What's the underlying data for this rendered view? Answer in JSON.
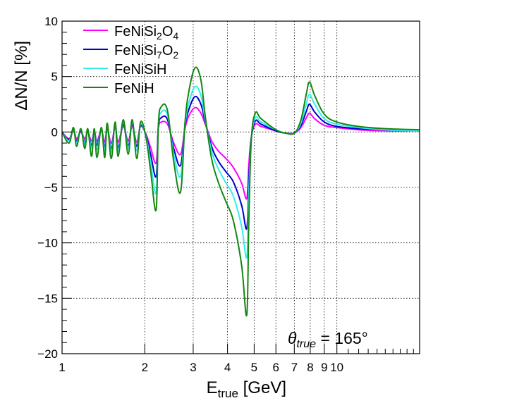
{
  "chart_data": {
    "type": "line",
    "title": "",
    "xlabel": "E",
    "xlabel_sub": "true",
    "xlabel_unit": " [GeV]",
    "ylabel": "ΔN/N [%]",
    "annotation": {
      "symbol": "θ",
      "sub": "true",
      "text": " = 165°"
    },
    "x_scale": "log",
    "xlim": [
      1,
      20
    ],
    "ylim": [
      -20,
      10
    ],
    "grid": true,
    "legend_position": "top-left",
    "x_tick_labels": [
      {
        "value": 1,
        "label": "1"
      },
      {
        "value": 2,
        "label": "2"
      },
      {
        "value": 3,
        "label": "3"
      },
      {
        "value": 4,
        "label": "4"
      },
      {
        "value": 5,
        "label": "5"
      },
      {
        "value": 6,
        "label": "6"
      },
      {
        "value": 7,
        "label": "7"
      },
      {
        "value": 8,
        "label": "8"
      },
      {
        "value": 9,
        "label": "9"
      },
      {
        "value": 10,
        "label": "10"
      }
    ],
    "y_ticks": [
      -20,
      -15,
      -10,
      -5,
      0,
      5,
      10
    ],
    "series": [
      {
        "name": "FeNiSi2O4",
        "label_parts": [
          [
            "FeNiSi",
            ""
          ],
          [
            "2",
            "sub"
          ],
          [
            "O",
            ""
          ],
          [
            "4",
            "sub"
          ]
        ],
        "color": "#ff00ff",
        "x": [
          1,
          1.06,
          1.1,
          1.13,
          1.17,
          1.21,
          1.24,
          1.28,
          1.31,
          1.34,
          1.39,
          1.43,
          1.46,
          1.51,
          1.56,
          1.6,
          1.67,
          1.74,
          1.8,
          1.87,
          1.93,
          2.02,
          2.1,
          2.2,
          2.24,
          2.3,
          2.42,
          2.55,
          2.7,
          2.8,
          2.9,
          3.05,
          3.2,
          3.32,
          3.5,
          3.7,
          3.95,
          4.2,
          4.5,
          4.7,
          4.78,
          4.88,
          5.05,
          5.3,
          6.0,
          6.5,
          7.0,
          7.4,
          7.75,
          7.95,
          8.3,
          9,
          10,
          12,
          15,
          20
        ],
        "y": [
          0,
          -0.6,
          0.1,
          -0.6,
          0.0,
          -0.6,
          0.0,
          -0.8,
          0.05,
          -0.8,
          0.1,
          -0.9,
          0.3,
          -1.0,
          0.4,
          -0.9,
          0.5,
          -0.8,
          0.5,
          -0.9,
          0.5,
          -0.2,
          -1.4,
          -2.8,
          0.3,
          0.9,
          0.7,
          -1.0,
          -2.0,
          0.3,
          1.5,
          2.2,
          1.7,
          0.7,
          -0.8,
          -1.7,
          -2.4,
          -3.2,
          -4.6,
          -6.0,
          -3.0,
          -0.5,
          0.7,
          0.5,
          0.1,
          -0.1,
          -0.1,
          0.4,
          1.3,
          1.7,
          1.2,
          0.6,
          0.4,
          0.2,
          0.1,
          0.1
        ]
      },
      {
        "name": "FeNiSi7O2",
        "label_parts": [
          [
            "FeNiSi",
            ""
          ],
          [
            "7",
            "sub"
          ],
          [
            "O",
            ""
          ],
          [
            "2",
            "sub"
          ]
        ],
        "color": "#0000cc",
        "x": [
          1,
          1.06,
          1.1,
          1.13,
          1.17,
          1.21,
          1.24,
          1.28,
          1.31,
          1.34,
          1.39,
          1.43,
          1.46,
          1.51,
          1.56,
          1.6,
          1.67,
          1.74,
          1.8,
          1.87,
          1.93,
          2.02,
          2.1,
          2.2,
          2.24,
          2.3,
          2.42,
          2.55,
          2.7,
          2.8,
          2.9,
          3.05,
          3.2,
          3.32,
          3.5,
          3.7,
          3.95,
          4.2,
          4.5,
          4.7,
          4.78,
          4.88,
          5.05,
          5.3,
          6.0,
          6.5,
          7.0,
          7.4,
          7.75,
          7.95,
          8.3,
          9,
          10,
          12,
          15,
          20
        ],
        "y": [
          0,
          -0.7,
          0.2,
          -0.8,
          0.1,
          -0.9,
          0.1,
          -1.2,
          0.1,
          -1.2,
          0.2,
          -1.4,
          0.4,
          -1.5,
          0.6,
          -1.4,
          0.7,
          -1.2,
          0.7,
          -1.3,
          0.6,
          -0.3,
          -2.0,
          -4.0,
          0.4,
          1.3,
          1.1,
          -1.5,
          -3.0,
          0.5,
          2.1,
          3.2,
          2.5,
          0.9,
          -1.3,
          -2.6,
          -3.6,
          -4.5,
          -6.6,
          -8.7,
          -4.4,
          -0.6,
          1.0,
          0.7,
          0.1,
          -0.1,
          -0.1,
          0.6,
          1.9,
          2.5,
          1.8,
          0.9,
          0.5,
          0.3,
          0.2,
          0.1
        ]
      },
      {
        "name": "FeNiSiH",
        "label_parts": [
          [
            "FeNiSiH",
            ""
          ]
        ],
        "color": "#33eeee",
        "x": [
          1,
          1.06,
          1.1,
          1.13,
          1.17,
          1.21,
          1.24,
          1.28,
          1.31,
          1.34,
          1.39,
          1.43,
          1.46,
          1.51,
          1.56,
          1.6,
          1.67,
          1.74,
          1.8,
          1.87,
          1.93,
          2.02,
          2.1,
          2.2,
          2.24,
          2.3,
          2.42,
          2.55,
          2.7,
          2.8,
          2.9,
          3.05,
          3.2,
          3.32,
          3.5,
          3.7,
          3.95,
          4.2,
          4.5,
          4.7,
          4.78,
          4.88,
          5.05,
          5.3,
          6.0,
          6.5,
          7.0,
          7.4,
          7.75,
          7.95,
          8.3,
          9,
          10,
          12,
          15,
          20
        ],
        "y": [
          0,
          -0.8,
          0.3,
          -1.0,
          0.2,
          -1.1,
          0.2,
          -1.5,
          0.2,
          -1.6,
          0.3,
          -1.7,
          0.6,
          -1.8,
          0.7,
          -1.7,
          0.9,
          -1.5,
          0.9,
          -1.7,
          0.7,
          -0.4,
          -2.7,
          -5.5,
          0.5,
          1.8,
          1.5,
          -2.0,
          -4.0,
          0.6,
          2.7,
          4.1,
          3.3,
          1.1,
          -1.7,
          -3.3,
          -4.6,
          -5.8,
          -8.5,
          -11.3,
          -5.7,
          -0.7,
          1.3,
          0.9,
          0.2,
          -0.1,
          -0.1,
          0.8,
          2.6,
          3.4,
          2.5,
          1.2,
          0.7,
          0.4,
          0.2,
          0.1
        ]
      },
      {
        "name": "FeNiH",
        "label_parts": [
          [
            "FeNiH",
            ""
          ]
        ],
        "color": "#118811",
        "x": [
          1,
          1.06,
          1.1,
          1.13,
          1.17,
          1.21,
          1.24,
          1.28,
          1.31,
          1.34,
          1.39,
          1.43,
          1.46,
          1.51,
          1.56,
          1.6,
          1.67,
          1.74,
          1.8,
          1.87,
          1.93,
          2.02,
          2.1,
          2.2,
          2.24,
          2.3,
          2.42,
          2.55,
          2.7,
          2.8,
          2.9,
          3.05,
          3.2,
          3.32,
          3.5,
          3.7,
          3.95,
          4.2,
          4.5,
          4.7,
          4.78,
          4.88,
          5.05,
          5.3,
          6.0,
          6.5,
          7.0,
          7.4,
          7.75,
          7.95,
          8.3,
          9,
          10,
          12,
          15,
          20
        ],
        "y": [
          0,
          -1.0,
          0.4,
          -1.3,
          0.3,
          -1.5,
          0.3,
          -2.2,
          0.3,
          -2.3,
          0.4,
          -2.3,
          0.8,
          -2.4,
          0.9,
          -2.2,
          1.1,
          -2.0,
          1.1,
          -2.4,
          0.9,
          -0.5,
          -3.5,
          -7.0,
          0.6,
          2.3,
          1.9,
          -2.7,
          -5.4,
          0.8,
          3.8,
          5.8,
          4.7,
          1.4,
          -2.4,
          -4.5,
          -6.3,
          -8.0,
          -12.0,
          -16.5,
          -8.2,
          -0.8,
          1.7,
          1.2,
          0.2,
          -0.1,
          -0.1,
          1.1,
          3.5,
          4.5,
          3.3,
          1.6,
          0.9,
          0.5,
          0.3,
          0.2
        ]
      }
    ]
  }
}
